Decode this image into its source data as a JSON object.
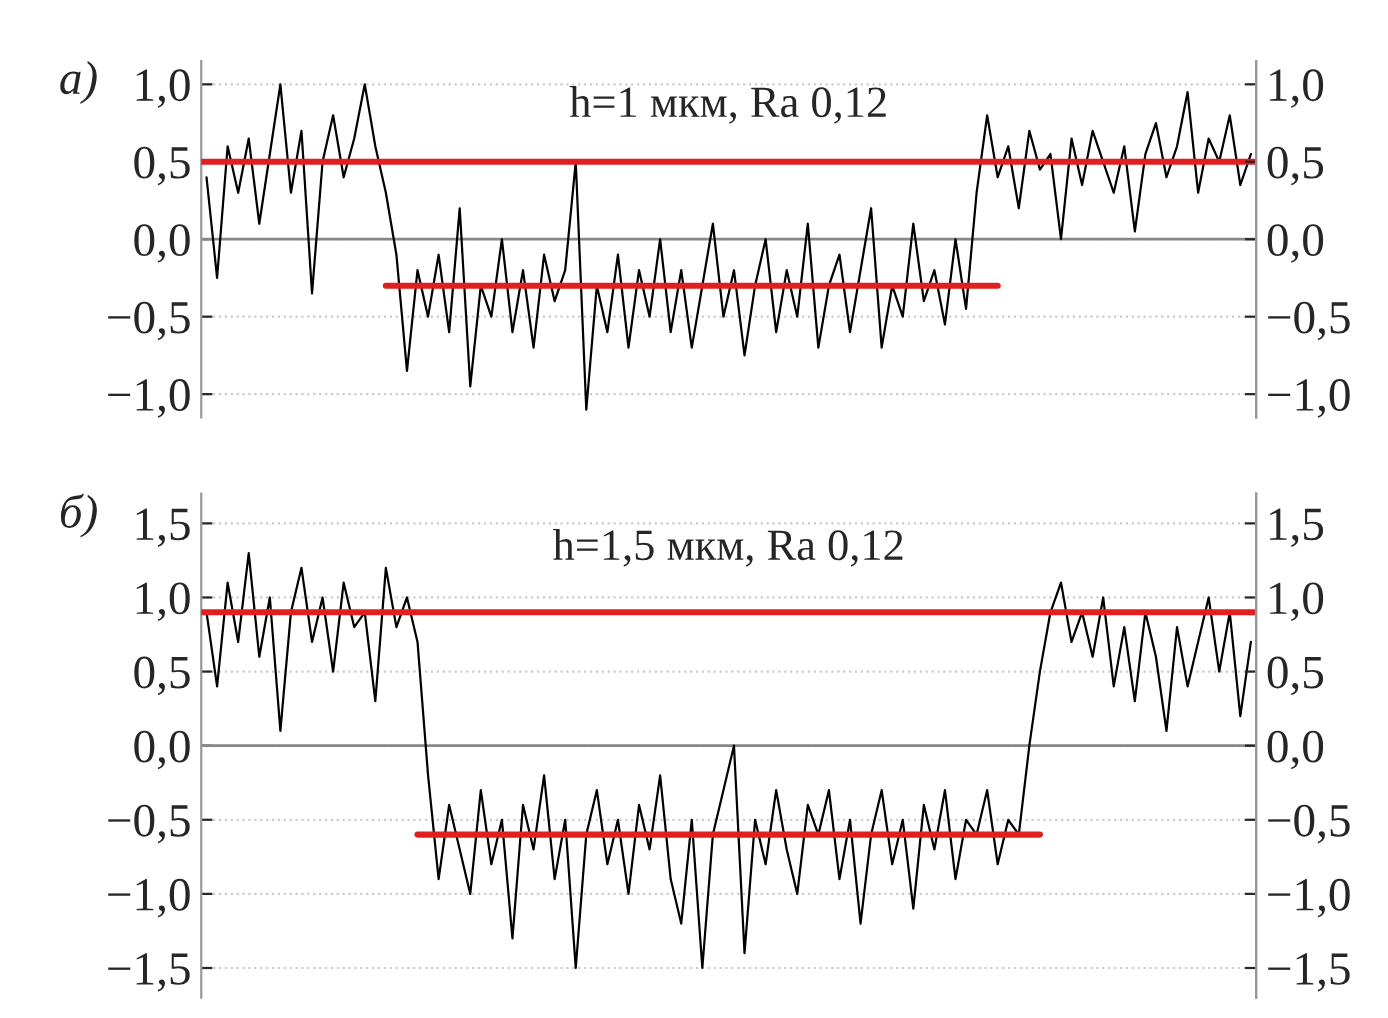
{
  "chart_data": [
    {
      "type": "line",
      "title": "а)",
      "annotations": [
        "h=1 мкм, Ra 0,12"
      ],
      "categories": [
        null,
        null,
        null,
        null,
        null,
        null,
        null,
        null,
        null,
        null,
        null,
        null,
        null,
        null,
        null,
        null,
        null,
        null,
        null,
        null,
        null,
        null,
        null,
        null,
        null,
        null,
        null,
        null,
        null,
        null,
        null,
        null,
        null,
        null,
        null,
        null,
        null,
        null,
        null,
        null,
        null,
        null,
        null,
        null,
        null,
        null,
        null,
        null,
        null,
        null,
        null,
        null,
        null,
        null,
        null,
        null,
        null,
        null,
        null,
        null,
        null,
        null,
        null,
        null,
        null,
        null,
        null,
        null,
        null,
        null,
        null,
        null,
        null,
        null,
        null,
        null,
        null,
        null,
        null,
        null,
        null,
        null,
        null,
        null,
        null,
        null,
        null,
        null,
        null,
        null,
        null,
        null,
        null,
        null,
        null,
        null,
        null,
        null,
        null,
        null
      ],
      "series": [
        {
          "color": "#000000",
          "values": [
            0.4,
            -0.25,
            0.6,
            0.3,
            0.65,
            0.1,
            0.55,
            1.0,
            0.3,
            0.7,
            -0.35,
            0.5,
            0.8,
            0.4,
            0.65,
            1.0,
            0.6,
            0.3,
            -0.1,
            -0.85,
            -0.2,
            -0.5,
            -0.1,
            -0.6,
            0.2,
            -0.95,
            -0.3,
            -0.5,
            0.0,
            -0.6,
            -0.2,
            -0.7,
            -0.1,
            -0.4,
            -0.2,
            0.5,
            -1.1,
            -0.3,
            -0.6,
            -0.1,
            -0.7,
            -0.2,
            -0.5,
            0.0,
            -0.6,
            -0.2,
            -0.7,
            -0.3,
            0.1,
            -0.5,
            -0.2,
            -0.75,
            -0.3,
            0.0,
            -0.6,
            -0.2,
            -0.5,
            0.1,
            -0.7,
            -0.3,
            -0.1,
            -0.6,
            -0.2,
            0.2,
            -0.7,
            -0.3,
            -0.5,
            0.1,
            -0.4,
            -0.2,
            -0.55,
            0.0,
            -0.45,
            0.3,
            0.8,
            0.4,
            0.6,
            0.2,
            0.7,
            0.45,
            0.55,
            0.0,
            0.65,
            0.35,
            0.7,
            0.5,
            0.3,
            0.6,
            0.05,
            0.55,
            0.75,
            0.4,
            0.6,
            0.95,
            0.3,
            0.65,
            0.5,
            0.8,
            0.35,
            0.55
          ]
        },
        {
          "color": "#e02020",
          "values": [
            null,
            null,
            null,
            null,
            null,
            null,
            null,
            null,
            null,
            null,
            null,
            null,
            null,
            null,
            null,
            null,
            null,
            -0.3,
            -0.3,
            -0.3,
            -0.3,
            -0.3,
            -0.3,
            -0.3,
            -0.3,
            -0.3,
            -0.3,
            -0.3,
            -0.3,
            -0.3,
            -0.3,
            -0.3,
            -0.3,
            -0.3,
            -0.3,
            -0.3,
            -0.3,
            -0.3,
            -0.3,
            -0.3,
            -0.3,
            -0.3,
            -0.3,
            -0.3,
            -0.3,
            -0.3,
            -0.3,
            -0.3,
            -0.3,
            -0.3,
            -0.3,
            -0.3,
            -0.3,
            -0.3,
            -0.3,
            -0.3,
            -0.3,
            -0.3,
            -0.3,
            -0.3,
            -0.3,
            -0.3,
            -0.3,
            -0.3,
            -0.3,
            -0.3,
            -0.3,
            -0.3,
            -0.3,
            -0.3,
            -0.3,
            -0.3,
            -0.3,
            -0.3,
            -0.3,
            -0.3,
            null,
            null,
            null,
            null,
            null,
            null,
            null,
            null,
            null,
            null,
            null,
            null,
            null,
            null,
            null,
            null,
            null,
            null,
            null,
            null,
            null,
            null,
            null,
            null
          ]
        }
      ],
      "ref_lines": [
        {
          "axis": "y",
          "value": 0,
          "color": "#888888"
        },
        {
          "axis": "y",
          "value": 0.5,
          "color": "#e02020"
        }
      ],
      "ylim": [
        -1.15,
        1.15
      ],
      "yticks": [
        {
          "value": -1.0,
          "label": "−1,0"
        },
        {
          "value": -0.5,
          "label": "−0,5"
        },
        {
          "value": 0,
          "label": "0,0"
        },
        {
          "value": 0.5,
          "label": "0,5"
        },
        {
          "value": 1.0,
          "label": "1,0"
        }
      ],
      "y2lim": [
        -1.15,
        1.15
      ],
      "y2ticks": [
        {
          "value": -1.0,
          "label": "−1,0"
        },
        {
          "value": -0.5,
          "label": "−0,5"
        },
        {
          "value": 0,
          "label": "0,0"
        },
        {
          "value": 0.5,
          "label": "0,5"
        },
        {
          "value": 1.0,
          "label": "1,0"
        }
      ],
      "grid": "y"
    },
    {
      "type": "line",
      "title": "б)",
      "annotations": [
        "h=1,5 мкм, Ra 0,12"
      ],
      "categories": [
        null,
        null,
        null,
        null,
        null,
        null,
        null,
        null,
        null,
        null,
        null,
        null,
        null,
        null,
        null,
        null,
        null,
        null,
        null,
        null,
        null,
        null,
        null,
        null,
        null,
        null,
        null,
        null,
        null,
        null,
        null,
        null,
        null,
        null,
        null,
        null,
        null,
        null,
        null,
        null,
        null,
        null,
        null,
        null,
        null,
        null,
        null,
        null,
        null,
        null,
        null,
        null,
        null,
        null,
        null,
        null,
        null,
        null,
        null,
        null,
        null,
        null,
        null,
        null,
        null,
        null,
        null,
        null,
        null,
        null,
        null,
        null,
        null,
        null,
        null,
        null,
        null,
        null,
        null,
        null,
        null,
        null,
        null,
        null,
        null,
        null,
        null,
        null,
        null,
        null,
        null,
        null,
        null,
        null,
        null,
        null,
        null,
        null,
        null,
        null
      ],
      "series": [
        {
          "color": "#000000",
          "values": [
            0.9,
            0.4,
            1.1,
            0.7,
            1.3,
            0.6,
            1.0,
            0.1,
            0.9,
            1.2,
            0.7,
            1.0,
            0.5,
            1.1,
            0.8,
            0.9,
            0.3,
            1.2,
            0.8,
            1.0,
            0.7,
            -0.2,
            -0.9,
            -0.4,
            -0.7,
            -1.0,
            -0.3,
            -0.8,
            -0.5,
            -1.3,
            -0.4,
            -0.7,
            -0.2,
            -0.9,
            -0.5,
            -1.5,
            -0.6,
            -0.3,
            -0.8,
            -0.5,
            -1.0,
            -0.4,
            -0.7,
            -0.2,
            -0.9,
            -1.2,
            -0.5,
            -1.5,
            -0.6,
            -0.3,
            0.0,
            -1.4,
            -0.5,
            -0.8,
            -0.3,
            -0.7,
            -1.0,
            -0.4,
            -0.6,
            -0.3,
            -0.9,
            -0.5,
            -1.2,
            -0.6,
            -0.3,
            -0.8,
            -0.5,
            -1.1,
            -0.4,
            -0.7,
            -0.3,
            -0.9,
            -0.5,
            -0.6,
            -0.3,
            -0.8,
            -0.5,
            -0.6,
            0.0,
            0.5,
            0.9,
            1.1,
            0.7,
            0.9,
            0.6,
            1.0,
            0.4,
            0.8,
            0.3,
            0.9,
            0.6,
            0.1,
            0.8,
            0.4,
            0.7,
            1.0,
            0.5,
            0.9,
            0.2,
            0.7
          ]
        },
        {
          "color": "#e02020",
          "values": [
            null,
            null,
            null,
            null,
            null,
            null,
            null,
            null,
            null,
            null,
            null,
            null,
            null,
            null,
            null,
            null,
            null,
            null,
            null,
            null,
            -0.6,
            -0.6,
            -0.6,
            -0.6,
            -0.6,
            -0.6,
            -0.6,
            -0.6,
            -0.6,
            -0.6,
            -0.6,
            -0.6,
            -0.6,
            -0.6,
            -0.6,
            -0.6,
            -0.6,
            -0.6,
            -0.6,
            -0.6,
            -0.6,
            -0.6,
            -0.6,
            -0.6,
            -0.6,
            -0.6,
            -0.6,
            -0.6,
            -0.6,
            -0.6,
            -0.6,
            -0.6,
            -0.6,
            -0.6,
            -0.6,
            -0.6,
            -0.6,
            -0.6,
            -0.6,
            -0.6,
            -0.6,
            -0.6,
            -0.6,
            -0.6,
            -0.6,
            -0.6,
            -0.6,
            -0.6,
            -0.6,
            -0.6,
            -0.6,
            -0.6,
            -0.6,
            -0.6,
            -0.6,
            -0.6,
            -0.6,
            -0.6,
            -0.6,
            -0.6,
            null,
            null,
            null,
            null,
            null,
            null,
            null,
            null,
            null,
            null,
            null,
            null,
            null,
            null,
            null,
            null,
            null,
            null,
            null,
            null
          ]
        }
      ],
      "ref_lines": [
        {
          "axis": "y",
          "value": 0,
          "color": "#888888"
        },
        {
          "axis": "y",
          "value": 0.9,
          "color": "#e02020"
        }
      ],
      "ylim": [
        -1.7,
        1.7
      ],
      "yticks": [
        {
          "value": -1.5,
          "label": "−1,5"
        },
        {
          "value": -1.0,
          "label": "−1,0"
        },
        {
          "value": -0.5,
          "label": "−0,5"
        },
        {
          "value": 0,
          "label": "0,0"
        },
        {
          "value": 0.5,
          "label": "0,5"
        },
        {
          "value": 1.0,
          "label": "1,0"
        },
        {
          "value": 1.5,
          "label": "1,5"
        }
      ],
      "y2lim": [
        -1.7,
        1.7
      ],
      "y2ticks": [
        {
          "value": -1.5,
          "label": "−1,5"
        },
        {
          "value": -1.0,
          "label": "−1,0"
        },
        {
          "value": -0.5,
          "label": "−0,5"
        },
        {
          "value": 0,
          "label": "0,0"
        },
        {
          "value": 0.5,
          "label": "0,5"
        },
        {
          "value": 1.0,
          "label": "1,0"
        },
        {
          "value": 1.5,
          "label": "1,5"
        }
      ],
      "grid": "y"
    }
  ]
}
